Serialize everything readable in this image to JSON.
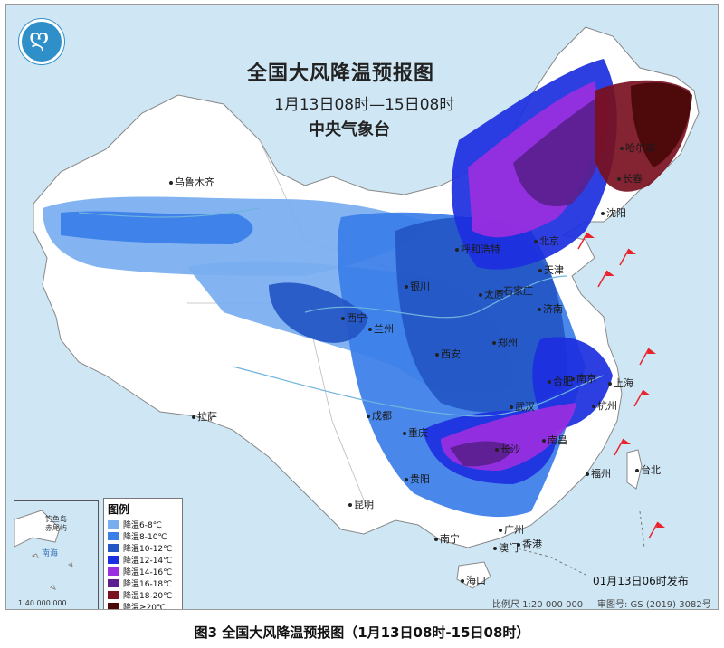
{
  "header": {
    "title": "全国大风降温预报图",
    "time_range": "1月13日08时—15日08时",
    "agency": "中央气象台"
  },
  "cities": [
    {
      "id": "urumqi",
      "name": "乌鲁木齐"
    },
    {
      "id": "harbin",
      "name": "哈尔滨"
    },
    {
      "id": "changchun",
      "name": "长春"
    },
    {
      "id": "shenyang",
      "name": "沈阳"
    },
    {
      "id": "hohhot",
      "name": "呼和浩特"
    },
    {
      "id": "beijing",
      "name": "北京"
    },
    {
      "id": "tianjin",
      "name": "天津"
    },
    {
      "id": "yinchuan",
      "name": "银川"
    },
    {
      "id": "taiyuan",
      "name": "太原"
    },
    {
      "id": "shijiazhuang",
      "name": "石家庄"
    },
    {
      "id": "jinan",
      "name": "济南"
    },
    {
      "id": "xining",
      "name": "西宁"
    },
    {
      "id": "lanzhou",
      "name": "兰州"
    },
    {
      "id": "zhengzhou",
      "name": "郑州"
    },
    {
      "id": "xian",
      "name": "西安"
    },
    {
      "id": "hefei",
      "name": "合肥"
    },
    {
      "id": "nanjing",
      "name": "南京"
    },
    {
      "id": "shanghai",
      "name": "上海"
    },
    {
      "id": "wuhan",
      "name": "武汉"
    },
    {
      "id": "hangzhou",
      "name": "杭州"
    },
    {
      "id": "chengdu",
      "name": "成都"
    },
    {
      "id": "lhasa",
      "name": "拉萨"
    },
    {
      "id": "chongqing",
      "name": "重庆"
    },
    {
      "id": "changsha",
      "name": "长沙"
    },
    {
      "id": "nanchang",
      "name": "南昌"
    },
    {
      "id": "fuzhou",
      "name": "福州"
    },
    {
      "id": "taipei",
      "name": "台北"
    },
    {
      "id": "guiyang",
      "name": "贵阳"
    },
    {
      "id": "kunming",
      "name": "昆明"
    },
    {
      "id": "guangzhou",
      "name": "广州"
    },
    {
      "id": "nanning",
      "name": "南宁"
    },
    {
      "id": "hongkong",
      "name": "香港"
    },
    {
      "id": "macau",
      "name": "澳门"
    },
    {
      "id": "haikou",
      "name": "海口"
    }
  ],
  "legend": {
    "title": "图例",
    "items": [
      {
        "label": "降温6-8℃",
        "color": "#78aef0"
      },
      {
        "label": "降温8-10℃",
        "color": "#3a7ee8"
      },
      {
        "label": "降温10-12℃",
        "color": "#2356c4"
      },
      {
        "label": "降温12-14℃",
        "color": "#1c2fe0"
      },
      {
        "label": "降温14-16℃",
        "color": "#9b2fe0"
      },
      {
        "label": "降温16-18℃",
        "color": "#5b1f8f"
      },
      {
        "label": "降温18-20℃",
        "color": "#7a1020"
      },
      {
        "label": "降温≥20℃",
        "color": "#4a0808"
      }
    ]
  },
  "inset": {
    "labels": [
      "钓鱼岛",
      "赤尾屿",
      "南海",
      "1:40 000 000"
    ]
  },
  "footer": {
    "issued": "01月13日06时发布",
    "scale": "比例尺 1:20 000 000",
    "review_number": "审图号: GS (2019) 3082号"
  },
  "caption": "图3 全国大风降温预报图（1月13日08时-15日08时）",
  "colors": {
    "sea": "#cfe7f5",
    "land": "#ffffff",
    "border": "#9a9a9a",
    "river": "#6fb3de",
    "wind_flag": "#e8242d"
  }
}
